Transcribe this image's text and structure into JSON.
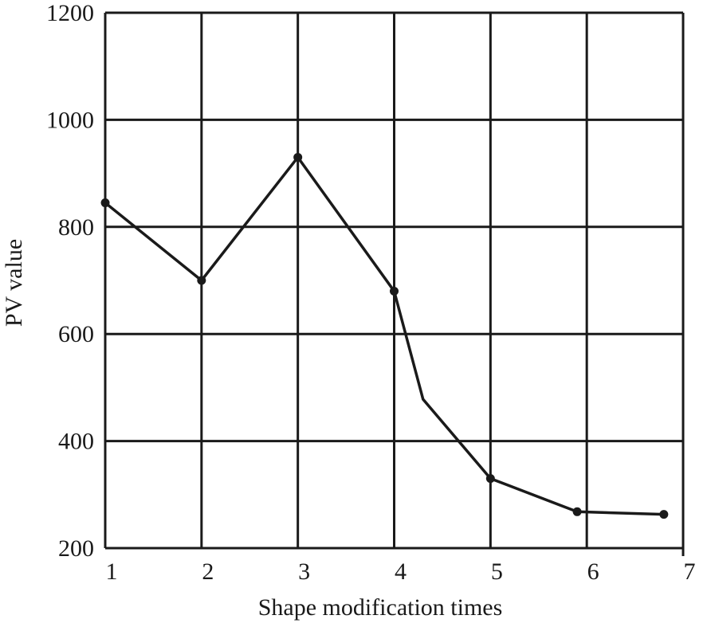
{
  "chart_data": {
    "type": "line",
    "title": "",
    "xlabel": "Shape modification times",
    "ylabel": "PV value",
    "grid": true,
    "xlim": [
      1,
      7
    ],
    "ylim": [
      200,
      1200
    ],
    "x_ticks": [
      "1",
      "2",
      "3",
      "4",
      "5",
      "6",
      "7"
    ],
    "y_ticks": [
      "200",
      "400",
      "600",
      "800",
      "1000",
      "1200"
    ],
    "series": [
      {
        "points": [
          {
            "x": 1,
            "y": 845,
            "marker": true
          },
          {
            "x": 2,
            "y": 700,
            "marker": true
          },
          {
            "x": 3,
            "y": 930,
            "marker": true
          },
          {
            "x": 4,
            "y": 680,
            "marker": true
          },
          {
            "x": 4.3,
            "y": 478,
            "marker": false
          },
          {
            "x": 5,
            "y": 330,
            "marker": true
          },
          {
            "x": 5.9,
            "y": 268,
            "marker": true
          },
          {
            "x": 6.8,
            "y": 263,
            "marker": true
          }
        ]
      }
    ],
    "line_color": "#1a1a1a",
    "grid_color": "#1a1a1a"
  }
}
